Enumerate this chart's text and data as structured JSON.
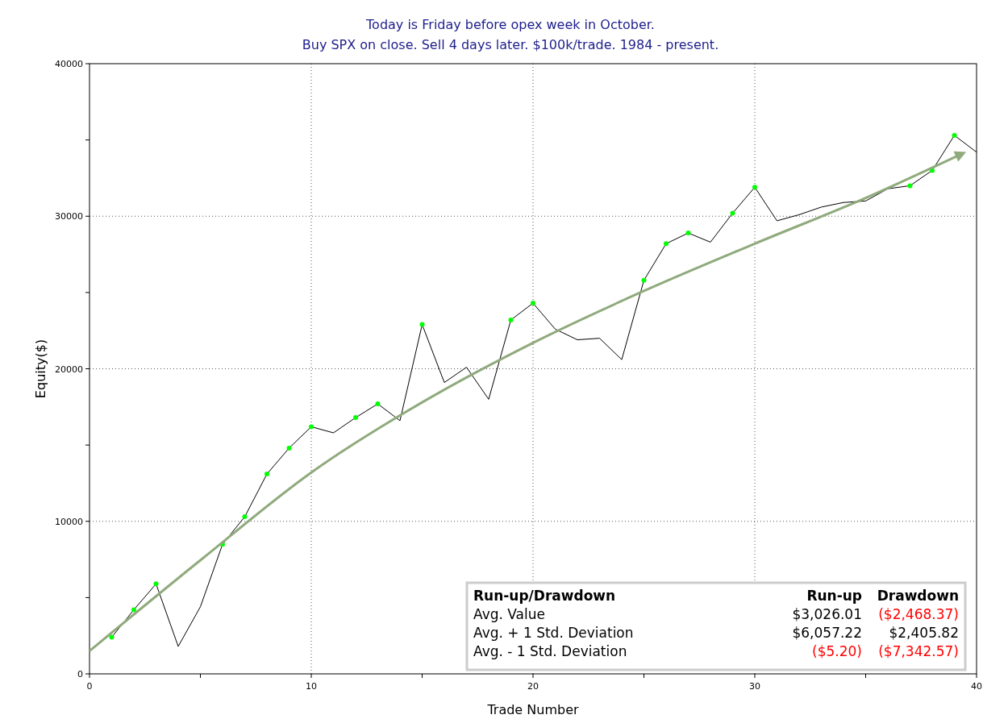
{
  "chart_data": {
    "type": "line",
    "title": "Today is Friday before opex week in October.",
    "subtitle": "Buy SPX on close. Sell 4 days later. $100k/trade. 1984 - present.",
    "xlabel": "Trade Number",
    "ylabel": "Equity($)",
    "xlim": [
      0,
      40
    ],
    "xticks": [
      0,
      {
        "value": 5,
        "label": null
      },
      10,
      {
        "value": 15,
        "label": null
      },
      20,
      {
        "value": 25,
        "label": null
      },
      30,
      {
        "value": 35,
        "label": null
      },
      40
    ],
    "ylim": [
      0,
      40000
    ],
    "yticks": [
      0,
      {
        "value": 5000,
        "label": null
      },
      10000,
      {
        "value": 15000,
        "label": null
      },
      20000,
      {
        "value": 25000,
        "label": null
      },
      30000,
      {
        "value": 35000,
        "label": null
      },
      40000
    ],
    "grid": true,
    "series": [
      {
        "type": "line",
        "color": "#000000",
        "marker": "none",
        "x": [
          1,
          2,
          3,
          4,
          5,
          6,
          7,
          8,
          9,
          10,
          11,
          12,
          13,
          14,
          15,
          16,
          17,
          18,
          19,
          20,
          21,
          22,
          23,
          24,
          25,
          26,
          27,
          28,
          29,
          30,
          31,
          32,
          33,
          34,
          35,
          36,
          37,
          38,
          39,
          40
        ],
        "values": [
          2400,
          4200,
          5900,
          1800,
          4400,
          8500,
          10300,
          13100,
          14800,
          16200,
          15800,
          16800,
          17700,
          16600,
          22900,
          19100,
          20100,
          18000,
          23200,
          24300,
          22600,
          21900,
          22000,
          20600,
          25800,
          28200,
          28900,
          28300,
          30200,
          31900,
          29700,
          30100,
          30600,
          30900,
          31000,
          31800,
          32000,
          33000,
          35300,
          34200
        ]
      },
      {
        "type": "scatter",
        "color": "#00ff00",
        "marker": "circle",
        "x": [
          1,
          2,
          3,
          6,
          7,
          8,
          9,
          10,
          12,
          13,
          15,
          19,
          20,
          25,
          26,
          27,
          29,
          30,
          37,
          38,
          39
        ],
        "values": [
          2400,
          4200,
          5900,
          8500,
          10300,
          13100,
          14800,
          16200,
          16800,
          17700,
          22900,
          23200,
          24300,
          25800,
          28200,
          28900,
          30200,
          31900,
          32000,
          33000,
          35300
        ]
      },
      {
        "type": "line",
        "color": "#8faa7c",
        "marker": "none",
        "x": [
          0,
          5,
          10,
          15,
          20,
          25,
          30,
          35,
          39.2
        ],
        "values": [
          1500,
          7450,
          13200,
          17800,
          21700,
          25100,
          28200,
          31200,
          34000
        ]
      }
    ],
    "annotations": [
      "Run-up/Drawdown",
      "Run-up",
      "Drawdown",
      "Avg. Value",
      "$3,026.01",
      "($2,468.37)",
      "Avg. + 1 Std. Deviation",
      "$6,057.22",
      "$2,405.82",
      "Avg. - 1 Std. Deviation",
      "($5.20)",
      "($7,342.57)"
    ]
  }
}
